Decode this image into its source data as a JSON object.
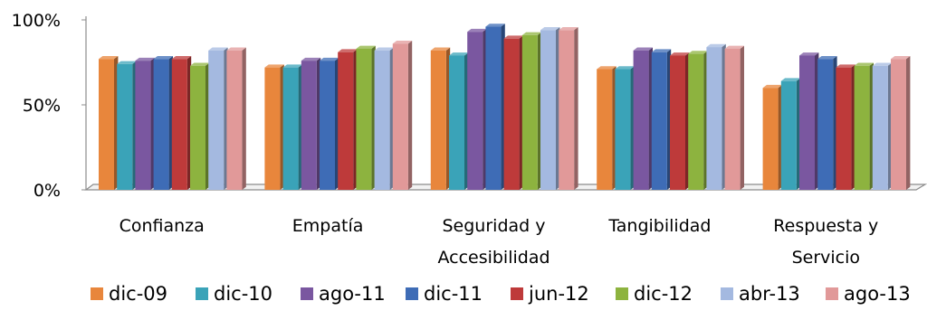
{
  "chart_data": {
    "type": "bar",
    "title": "",
    "xlabel": "",
    "ylabel": "",
    "ylim": [
      0,
      100
    ],
    "yticks": [
      "0%",
      "50%",
      "100%"
    ],
    "grid": false,
    "legend_position": "bottom",
    "three_d": true,
    "categories": [
      [
        "Confianza"
      ],
      [
        "Empatía"
      ],
      [
        "Seguridad y",
        "Accesibilidad"
      ],
      [
        "Tangibilidad"
      ],
      [
        "Respuesta y",
        "Servicio"
      ]
    ],
    "series": [
      {
        "name": "dic-09",
        "color": "#E8863C",
        "values": [
          77,
          72,
          82,
          71,
          60
        ]
      },
      {
        "name": "dic-10",
        "color": "#3AA3B8",
        "values": [
          74,
          72,
          79,
          71,
          64
        ]
      },
      {
        "name": "ago-11",
        "color": "#7A57A0",
        "values": [
          76,
          76,
          93,
          82,
          79
        ]
      },
      {
        "name": "dic-11",
        "color": "#3E6CB6",
        "values": [
          77,
          76,
          96,
          81,
          77
        ]
      },
      {
        "name": "jun-12",
        "color": "#BE3A3A",
        "values": [
          77,
          81,
          89,
          79,
          72
        ]
      },
      {
        "name": "dic-12",
        "color": "#8DB33F",
        "values": [
          73,
          83,
          91,
          80,
          73
        ]
      },
      {
        "name": "abr-13",
        "color": "#A4B9E0",
        "values": [
          82,
          82,
          94,
          84,
          73
        ]
      },
      {
        "name": "ago-13",
        "color": "#E19999",
        "values": [
          82,
          86,
          94,
          83,
          77
        ]
      }
    ]
  }
}
